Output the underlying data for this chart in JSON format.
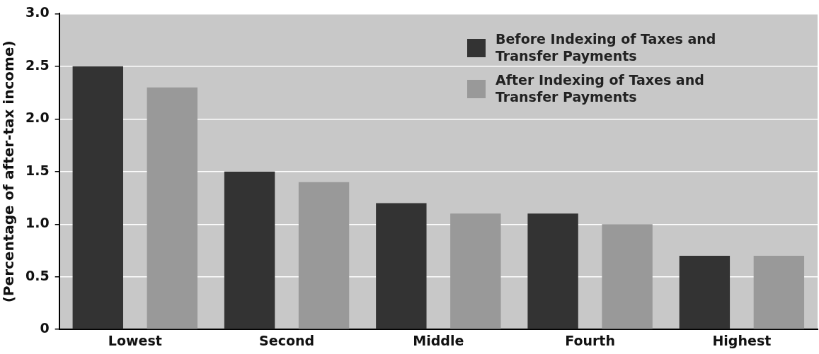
{
  "chart_data": {
    "type": "bar",
    "ylabel": "(Percentage of after-tax income)",
    "categories": [
      "Lowest",
      "Second",
      "Middle",
      "Fourth",
      "Highest"
    ],
    "series": [
      {
        "name": "Before Indexing of Taxes and Transfer Payments",
        "color": "#333333",
        "values": [
          2.5,
          1.5,
          1.2,
          1.1,
          0.7
        ]
      },
      {
        "name": "After Indexing of Taxes and Transfer Payments",
        "color": "#999999",
        "values": [
          2.3,
          1.4,
          1.1,
          1.0,
          0.7
        ]
      }
    ],
    "ylim": [
      0,
      3
    ],
    "yticks": [
      0,
      0.5,
      {
        "value": 1,
        "label": "1.0"
      },
      1.5,
      {
        "value": 2,
        "label": "2.0"
      },
      2.5,
      {
        "value": 3,
        "label": "3.0"
      }
    ],
    "grid": "y",
    "legend": "top right"
  }
}
